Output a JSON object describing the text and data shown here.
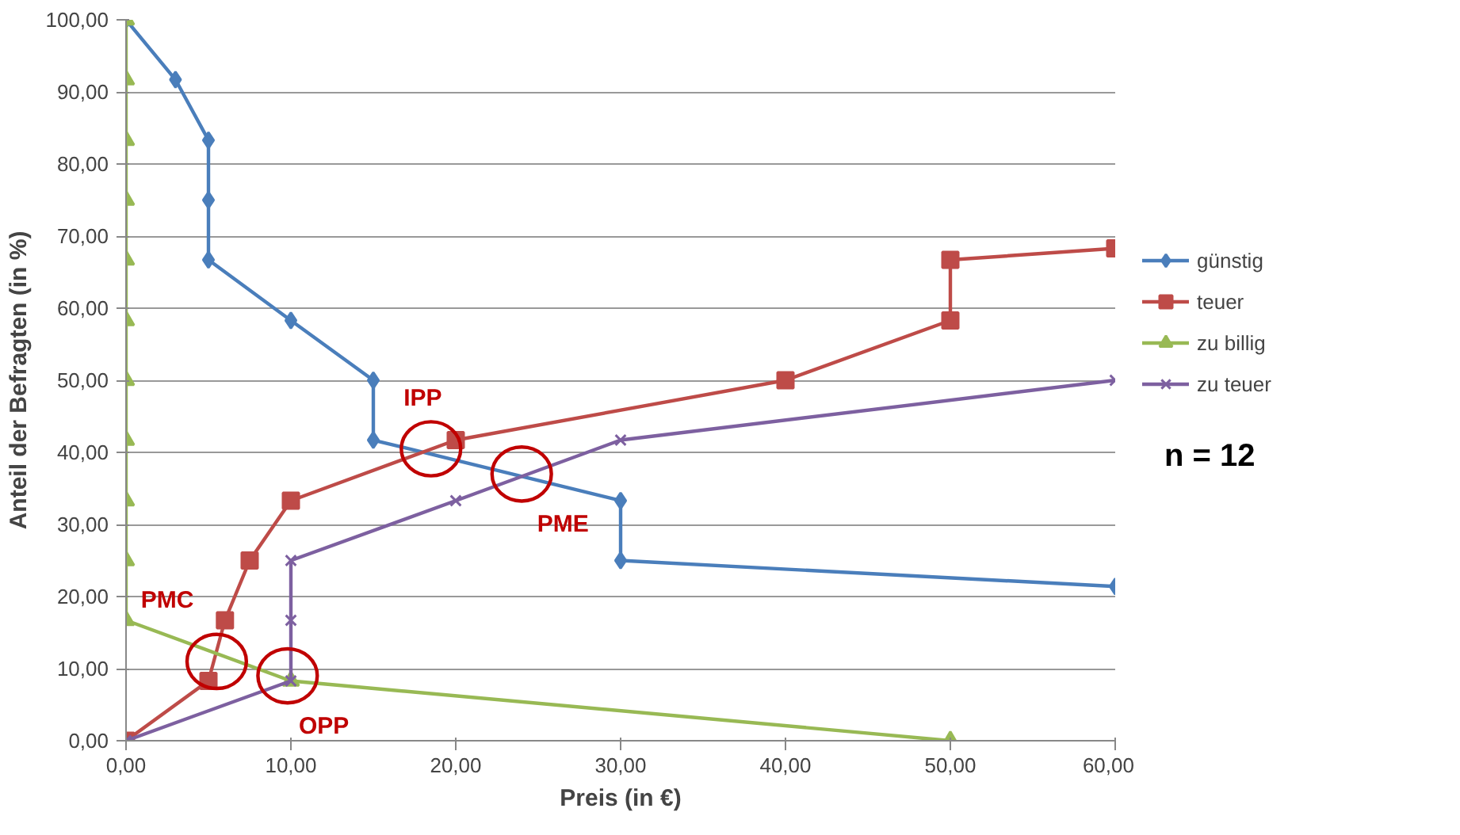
{
  "chart_data": {
    "type": "line",
    "xlabel": "Preis (in €)",
    "ylabel": "Anteil der Befragten (in %)",
    "xlim": [
      0,
      60
    ],
    "ylim": [
      0,
      100
    ],
    "xticks": [
      {
        "value": 0,
        "label": "0,00"
      },
      {
        "value": 10,
        "label": "10,00"
      },
      {
        "value": 20,
        "label": "20,00"
      },
      {
        "value": 30,
        "label": "30,00"
      },
      {
        "value": 40,
        "label": "40,00"
      },
      {
        "value": 50,
        "label": "50,00"
      },
      {
        "value": 60,
        "label": "60,00"
      }
    ],
    "yticks": [
      {
        "value": 0,
        "label": "0,00"
      },
      {
        "value": 10,
        "label": "10,00"
      },
      {
        "value": 20,
        "label": "20,00"
      },
      {
        "value": 30,
        "label": "30,00"
      },
      {
        "value": 40,
        "label": "40,00"
      },
      {
        "value": 50,
        "label": "50,00"
      },
      {
        "value": 60,
        "label": "60,00"
      },
      {
        "value": 70,
        "label": "70,00"
      },
      {
        "value": 80,
        "label": "80,00"
      },
      {
        "value": 90,
        "label": "90,00"
      },
      {
        "value": 100,
        "label": "100,00"
      }
    ],
    "grid": "y",
    "legend": "right",
    "series": [
      {
        "name": "günstig",
        "color": "#4a7ebb",
        "marker": "diamond",
        "x": [
          0,
          3,
          5,
          5,
          5,
          10,
          15,
          15,
          30,
          30,
          60
        ],
        "values": [
          100,
          91.7,
          83.3,
          75,
          66.7,
          58.3,
          50,
          41.7,
          33.3,
          25,
          21.4
        ]
      },
      {
        "name": "teuer",
        "color": "#be4b48",
        "marker": "square",
        "x": [
          0,
          5,
          6,
          7.5,
          10,
          20,
          40,
          50,
          50,
          60
        ],
        "values": [
          0,
          8.3,
          16.7,
          25,
          33.3,
          41.7,
          50,
          58.3,
          66.7,
          68.3
        ]
      },
      {
        "name": "zu billig",
        "color": "#98b954",
        "marker": "triangle",
        "x": [
          0,
          0,
          0,
          0,
          0,
          0,
          0,
          0,
          0,
          0,
          0,
          10,
          50
        ],
        "values": [
          100,
          91.7,
          83.3,
          75,
          66.7,
          58.3,
          50,
          41.7,
          33.3,
          25,
          16.7,
          8.3,
          0
        ]
      },
      {
        "name": "zu teuer",
        "color": "#7d60a0",
        "marker": "cross",
        "x": [
          0,
          10,
          10,
          10,
          20,
          30,
          60
        ],
        "values": [
          0,
          8.3,
          16.7,
          25,
          33.3,
          41.7,
          50
        ]
      }
    ],
    "annotations": [
      {
        "text": "PMC",
        "x": 5.5,
        "y": 11
      },
      {
        "text": "OPP",
        "x": 9.8,
        "y": 9
      },
      {
        "text": "IPP",
        "x": 18.5,
        "y": 40.5
      },
      {
        "text": "PME",
        "x": 24,
        "y": 37
      },
      "n = 12"
    ]
  }
}
